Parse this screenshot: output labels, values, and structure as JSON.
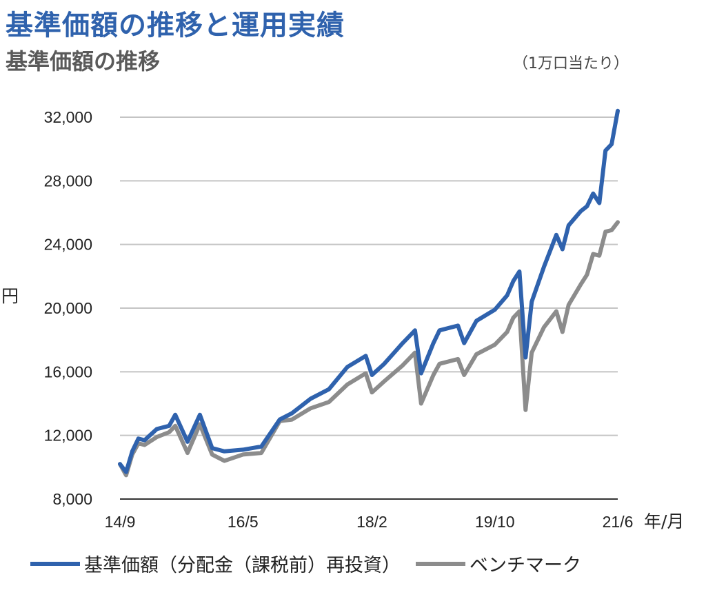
{
  "header": {
    "title": "基準価額の推移と運用実績",
    "subtitle": "基準価額の推移",
    "unit_note": "（1万口当たり）"
  },
  "chart_data": {
    "type": "line",
    "title": "基準価額の推移",
    "xlabel": "年/月",
    "ylabel": "円",
    "ylim": [
      8000,
      32000
    ],
    "yticks": [
      8000,
      12000,
      16000,
      20000,
      24000,
      28000,
      32000
    ],
    "ytick_labels": [
      "8,000",
      "12,000",
      "16,000",
      "20,000",
      "24,000",
      "28,000",
      "32,000"
    ],
    "xlim": [
      "2014-09",
      "2021-06"
    ],
    "xticks": [
      "2014-09",
      "2016-05",
      "2018-02",
      "2019-10",
      "2021-06"
    ],
    "xtick_labels": [
      "14/9",
      "16/5",
      "18/2",
      "19/10",
      "21/6"
    ],
    "grid": "horizontal",
    "legend": "bottom",
    "x": [
      "2014-09",
      "2014-10",
      "2014-11",
      "2014-12",
      "2015-01",
      "2015-03",
      "2015-05",
      "2015-06",
      "2015-08",
      "2015-10",
      "2015-12",
      "2016-02",
      "2016-05",
      "2016-08",
      "2016-11",
      "2017-01",
      "2017-04",
      "2017-07",
      "2017-10",
      "2018-01",
      "2018-02",
      "2018-04",
      "2018-07",
      "2018-09",
      "2018-10",
      "2018-12",
      "2019-01",
      "2019-04",
      "2019-05",
      "2019-07",
      "2019-10",
      "2019-12",
      "2020-01",
      "2020-02",
      "2020-03",
      "2020-04",
      "2020-06",
      "2020-08",
      "2020-09",
      "2020-10",
      "2020-12",
      "2021-01",
      "2021-02",
      "2021-03",
      "2021-04",
      "2021-05",
      "2021-06"
    ],
    "series": [
      {
        "name": "基準価額（分配金（課税前）再投資）",
        "color": "#2f62ad",
        "values": [
          10200,
          9700,
          11000,
          11800,
          11700,
          12400,
          12600,
          13300,
          11600,
          13300,
          11200,
          11000,
          11100,
          11300,
          13000,
          13400,
          14300,
          14900,
          16300,
          17000,
          15800,
          16500,
          17800,
          18600,
          15900,
          17800,
          18600,
          18900,
          17800,
          19200,
          19900,
          20800,
          21700,
          22300,
          16900,
          20400,
          22600,
          24600,
          23700,
          25200,
          26100,
          26400,
          27200,
          26600,
          29900,
          30300,
          32400
        ]
      },
      {
        "name": "ベンチマーク",
        "color": "#8c8c8c",
        "values": [
          10200,
          9500,
          10800,
          11500,
          11400,
          11900,
          12200,
          12600,
          10900,
          12700,
          10800,
          10400,
          10800,
          10900,
          12900,
          13000,
          13700,
          14100,
          15200,
          15900,
          14700,
          15400,
          16400,
          17200,
          14000,
          15800,
          16500,
          16800,
          15800,
          17100,
          17700,
          18500,
          19400,
          19800,
          13600,
          17200,
          18800,
          19800,
          18500,
          20200,
          21500,
          22100,
          23400,
          23300,
          24800,
          24900,
          25400
        ]
      }
    ]
  },
  "legend": {
    "items": [
      {
        "label": "基準価額（分配金（課税前）再投資）",
        "color": "#2f62ad"
      },
      {
        "label": "ベンチマーク",
        "color": "#8c8c8c"
      }
    ]
  }
}
